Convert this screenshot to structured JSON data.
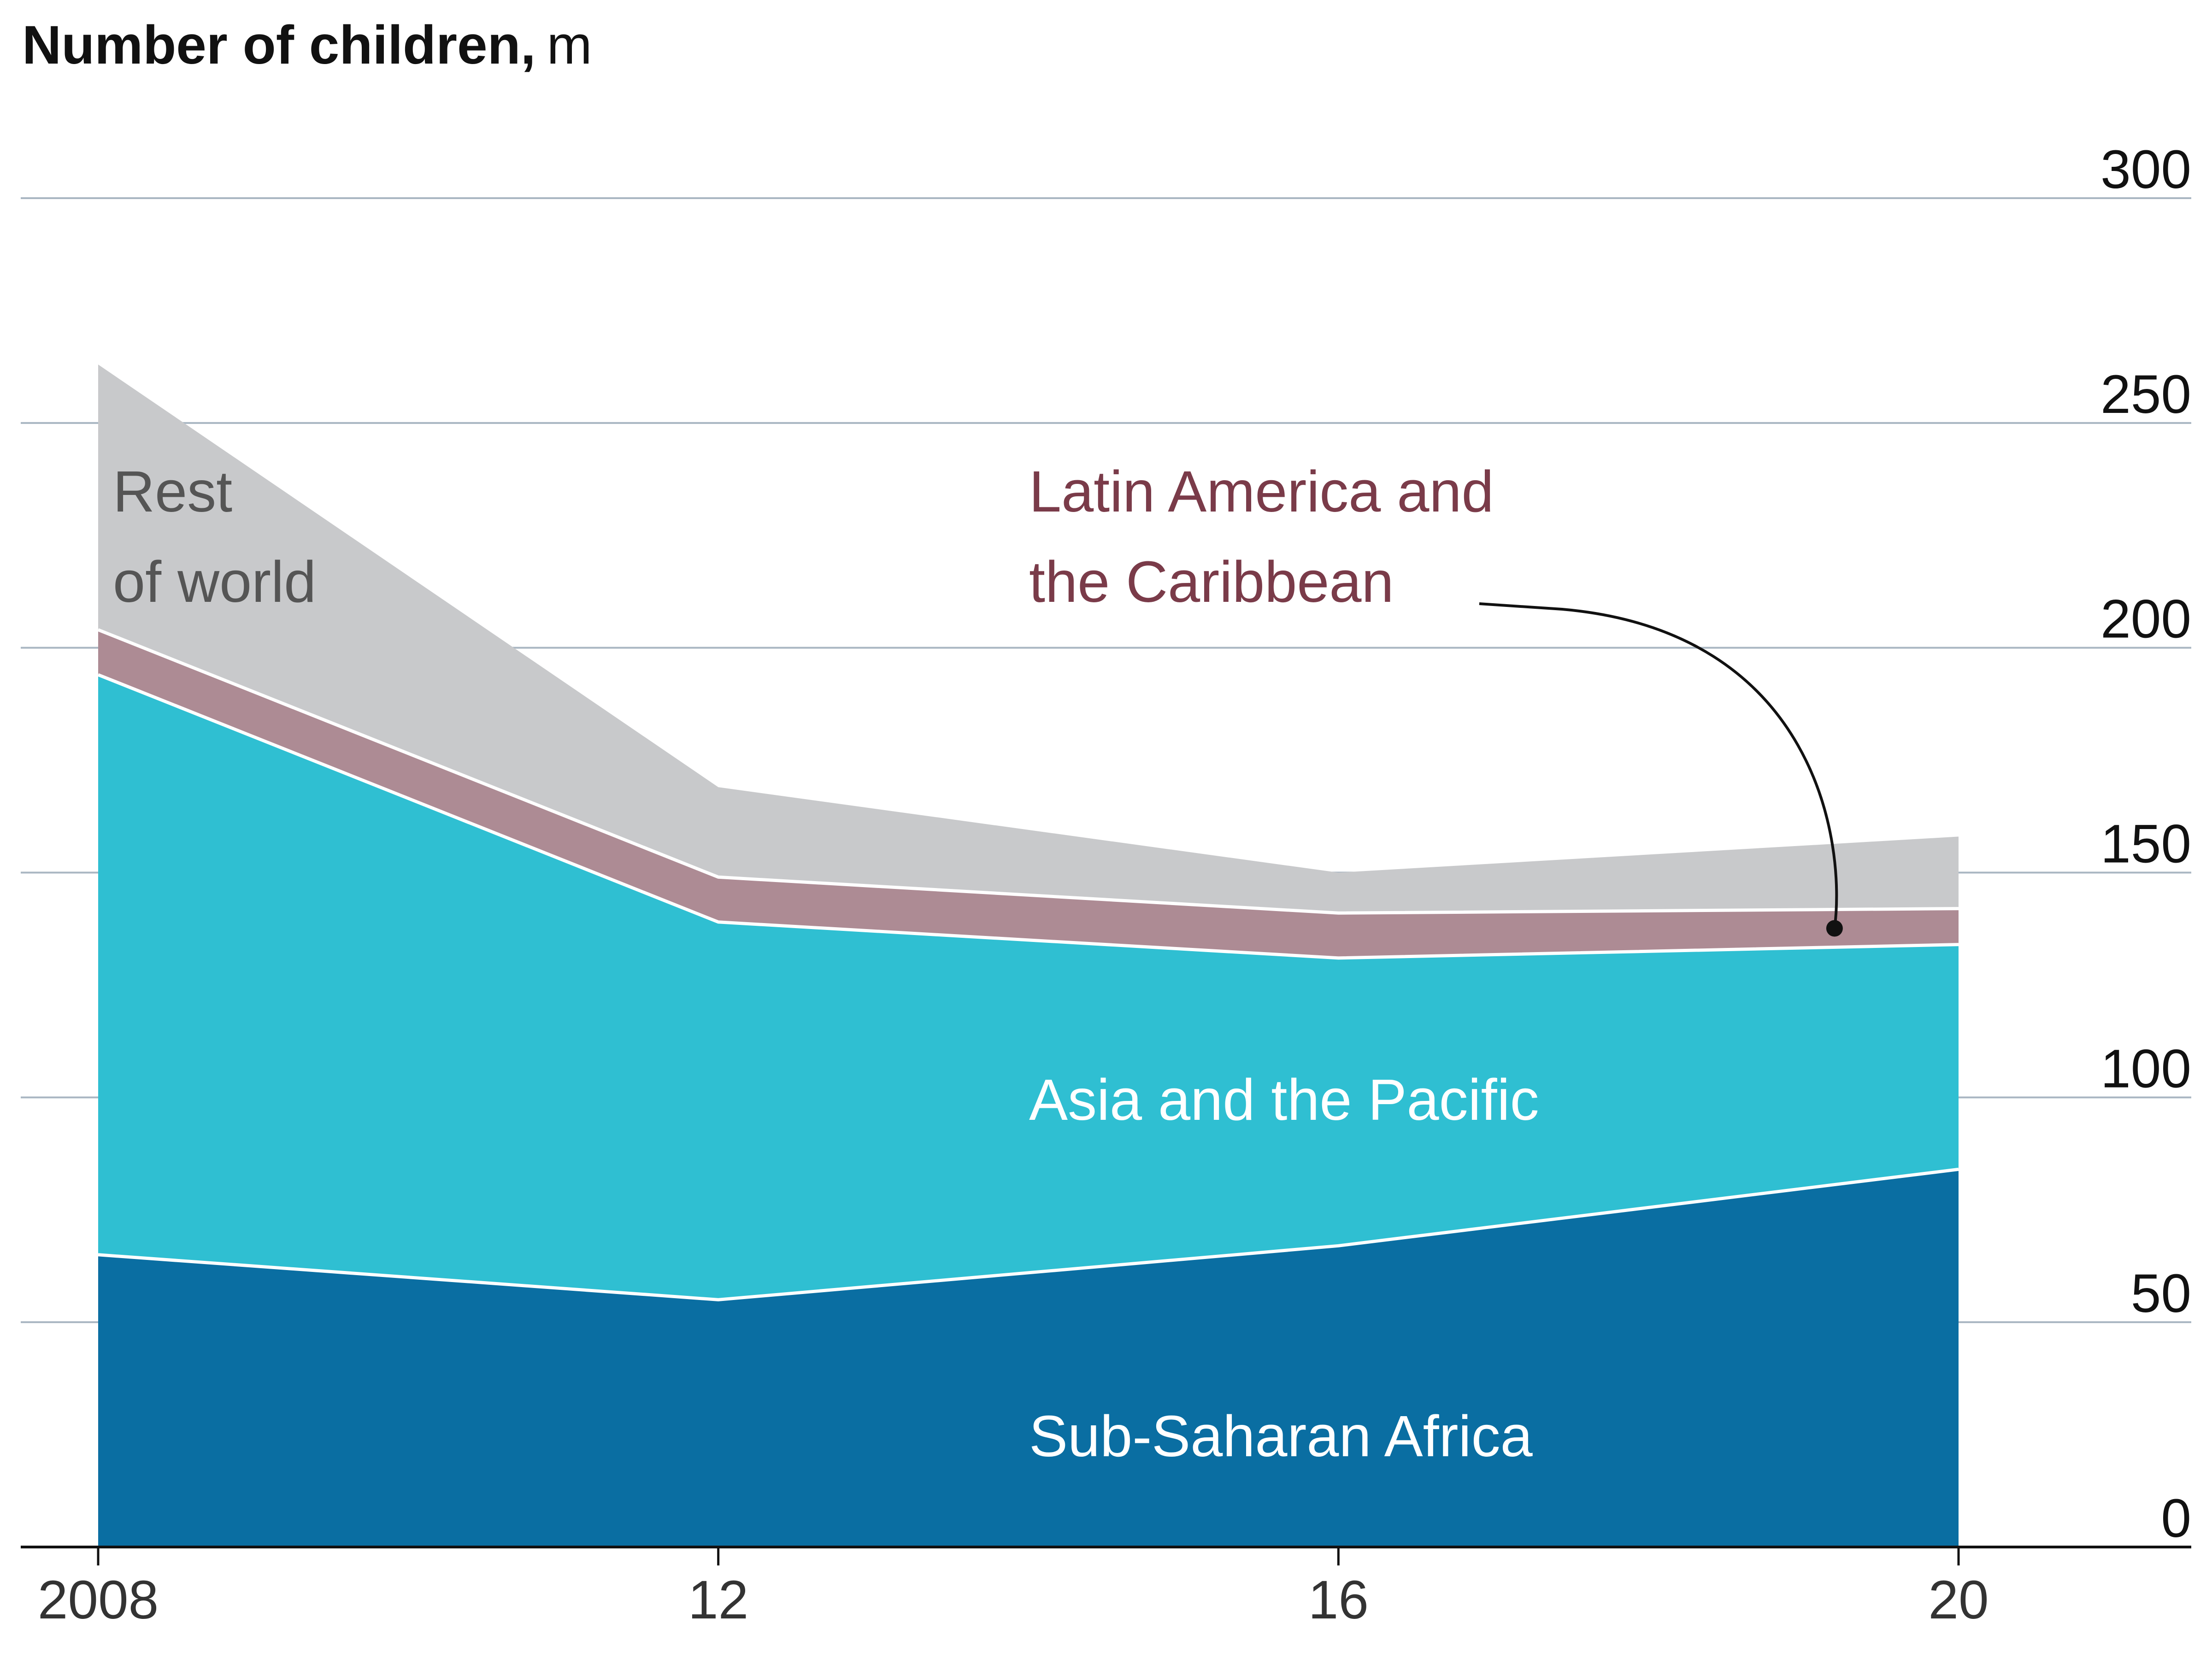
{
  "chart_data": {
    "type": "area",
    "stacked": true,
    "title": "Number of children,",
    "unit": "m",
    "x": [
      2008,
      2012,
      2016,
      2020
    ],
    "x_tick_labels": [
      "2008",
      "12",
      "16",
      "20"
    ],
    "ylim": [
      0,
      300
    ],
    "y_ticks": [
      0,
      50,
      100,
      150,
      200,
      250,
      300
    ],
    "y_tick_labels": [
      "0",
      "50",
      "100",
      "150",
      "200",
      "250",
      "300"
    ],
    "y_axis_side": "right",
    "grid": true,
    "series": [
      {
        "name": "Sub-Saharan Africa",
        "values": [
          65,
          55,
          67,
          84
        ],
        "color": "#0a6ea2",
        "label_lines": [
          "Sub-Saharan Africa"
        ],
        "label_color": "#ffffff"
      },
      {
        "name": "Asia and the Pacific",
        "values": [
          129,
          84,
          64,
          50
        ],
        "color": "#2fbfd2",
        "label_lines": [
          "Asia and the Pacific"
        ],
        "label_color": "#ffffff"
      },
      {
        "name": "Latin America and the Caribbean",
        "values": [
          10,
          10,
          10,
          8
        ],
        "color": "#ad8b94",
        "label_lines": [
          "Latin America and",
          "the Caribbean"
        ],
        "label_color": "#7a3b49"
      },
      {
        "name": "Rest of world",
        "values": [
          59,
          20,
          9,
          16
        ],
        "color": "#c8c9cb",
        "label_lines": [
          "Rest",
          "of world"
        ],
        "label_color": "#555555"
      }
    ]
  }
}
